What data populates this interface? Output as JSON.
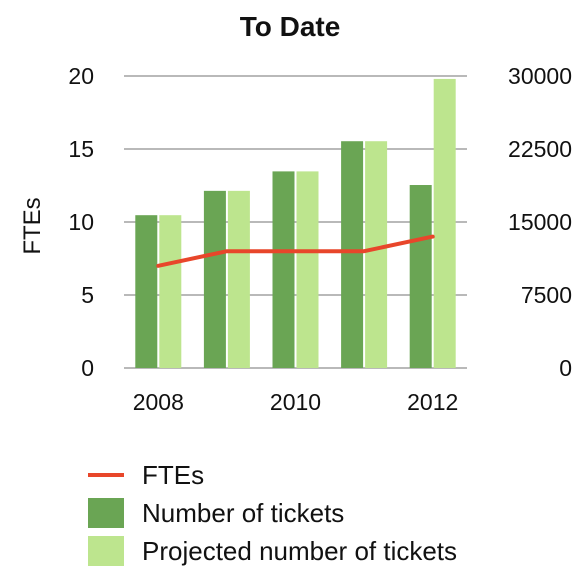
{
  "chart_data": {
    "type": "bar",
    "title": "To Date",
    "x": [
      2008,
      2009,
      2010,
      2011,
      2012
    ],
    "x_tick_labels": [
      "2008",
      "2010",
      "2012"
    ],
    "y_left": {
      "label": "FTEs",
      "ylim": [
        0,
        20
      ],
      "ticks": [
        0,
        5,
        10,
        15,
        20
      ]
    },
    "y_right": {
      "label": "",
      "ylim": [
        0,
        30000
      ],
      "ticks": [
        0,
        7500,
        15000,
        22500,
        30000
      ]
    },
    "grid": true,
    "legend_position": "bottom",
    "series": [
      {
        "name": "FTEs",
        "type": "line",
        "axis": "left",
        "color": "#e8462a",
        "values": [
          7,
          8,
          8,
          8,
          9
        ]
      },
      {
        "name": "Number of tickets",
        "type": "bar",
        "axis": "right",
        "color": "#6aa554",
        "values": [
          15700,
          18200,
          20200,
          23300,
          18800
        ]
      },
      {
        "name": "Projected number of tickets",
        "type": "bar",
        "axis": "right",
        "color": "#bde58e",
        "values": [
          15700,
          18200,
          20200,
          23300,
          29700
        ]
      }
    ]
  }
}
